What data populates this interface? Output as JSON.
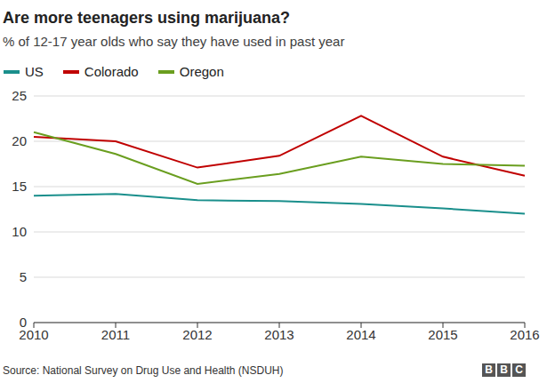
{
  "chart_data": {
    "type": "line",
    "title": "Are more teenagers using marijuana?",
    "subtitle": "% of 12-17 year olds who say they have used in past year",
    "categories": [
      "2010",
      "2011",
      "2012",
      "2013",
      "2014",
      "2015",
      "2016"
    ],
    "series": [
      {
        "name": "US",
        "color": "#1a8f8c",
        "values": [
          14.0,
          14.2,
          13.5,
          13.4,
          13.1,
          12.6,
          12.0
        ]
      },
      {
        "name": "Colorado",
        "color": "#c00000",
        "values": [
          20.5,
          20.0,
          17.1,
          18.4,
          22.8,
          18.3,
          16.2
        ]
      },
      {
        "name": "Oregon",
        "color": "#6a9e1f",
        "values": [
          21.0,
          18.6,
          15.3,
          16.4,
          18.3,
          17.5,
          17.3
        ]
      }
    ],
    "ylim": [
      0,
      25
    ],
    "yticks": [
      0,
      5,
      10,
      15,
      20,
      25
    ],
    "grid": true,
    "legend": "top",
    "source": "Source: National Survey on Drug Use and Health (NSDUH)",
    "logo": "BBC"
  }
}
